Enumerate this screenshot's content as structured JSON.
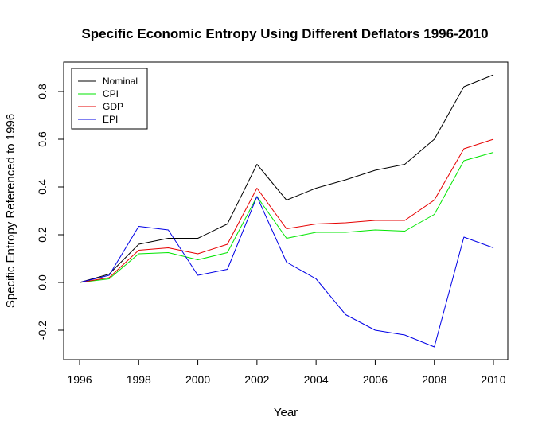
{
  "chart_data": {
    "type": "line",
    "title": "Specific Economic Entropy Using Different Deflators 1996-2010",
    "xlabel": "Year",
    "ylabel": "Specific Entropy Referenced to 1996",
    "xlim": [
      1996,
      2010
    ],
    "ylim": [
      -0.3,
      0.9
    ],
    "x_ticks": [
      1996,
      1998,
      2000,
      2002,
      2004,
      2006,
      2008,
      2010
    ],
    "y_ticks": [
      -0.2,
      0.0,
      0.2,
      0.4,
      0.6,
      0.8
    ],
    "y_tick_labels": [
      "-0.2",
      "0.0",
      "0.2",
      "0.4",
      "0.6",
      "0.8"
    ],
    "grid": false,
    "legend_position": "top-left",
    "x": [
      1996,
      1997,
      1998,
      1999,
      2000,
      2001,
      2002,
      2003,
      2004,
      2005,
      2006,
      2007,
      2008,
      2009,
      2010
    ],
    "series": [
      {
        "name": "Nominal",
        "color": "#000000",
        "values": [
          0.0,
          0.035,
          0.16,
          0.185,
          0.185,
          0.245,
          0.495,
          0.345,
          0.395,
          0.43,
          0.47,
          0.495,
          0.6,
          0.82,
          0.87
        ]
      },
      {
        "name": "CPI",
        "color": "#00e600",
        "values": [
          0.0,
          0.015,
          0.12,
          0.125,
          0.095,
          0.125,
          0.36,
          0.185,
          0.21,
          0.21,
          0.22,
          0.215,
          0.285,
          0.51,
          0.545
        ]
      },
      {
        "name": "GDP",
        "color": "#e60000",
        "values": [
          0.0,
          0.02,
          0.135,
          0.145,
          0.12,
          0.16,
          0.395,
          0.225,
          0.245,
          0.25,
          0.26,
          0.26,
          0.345,
          0.56,
          0.6
        ]
      },
      {
        "name": "EPI",
        "color": "#0000e6",
        "values": [
          0.0,
          0.03,
          0.235,
          0.22,
          0.03,
          0.055,
          0.36,
          0.085,
          0.015,
          -0.135,
          -0.2,
          -0.22,
          -0.27,
          0.19,
          0.145
        ]
      }
    ]
  }
}
